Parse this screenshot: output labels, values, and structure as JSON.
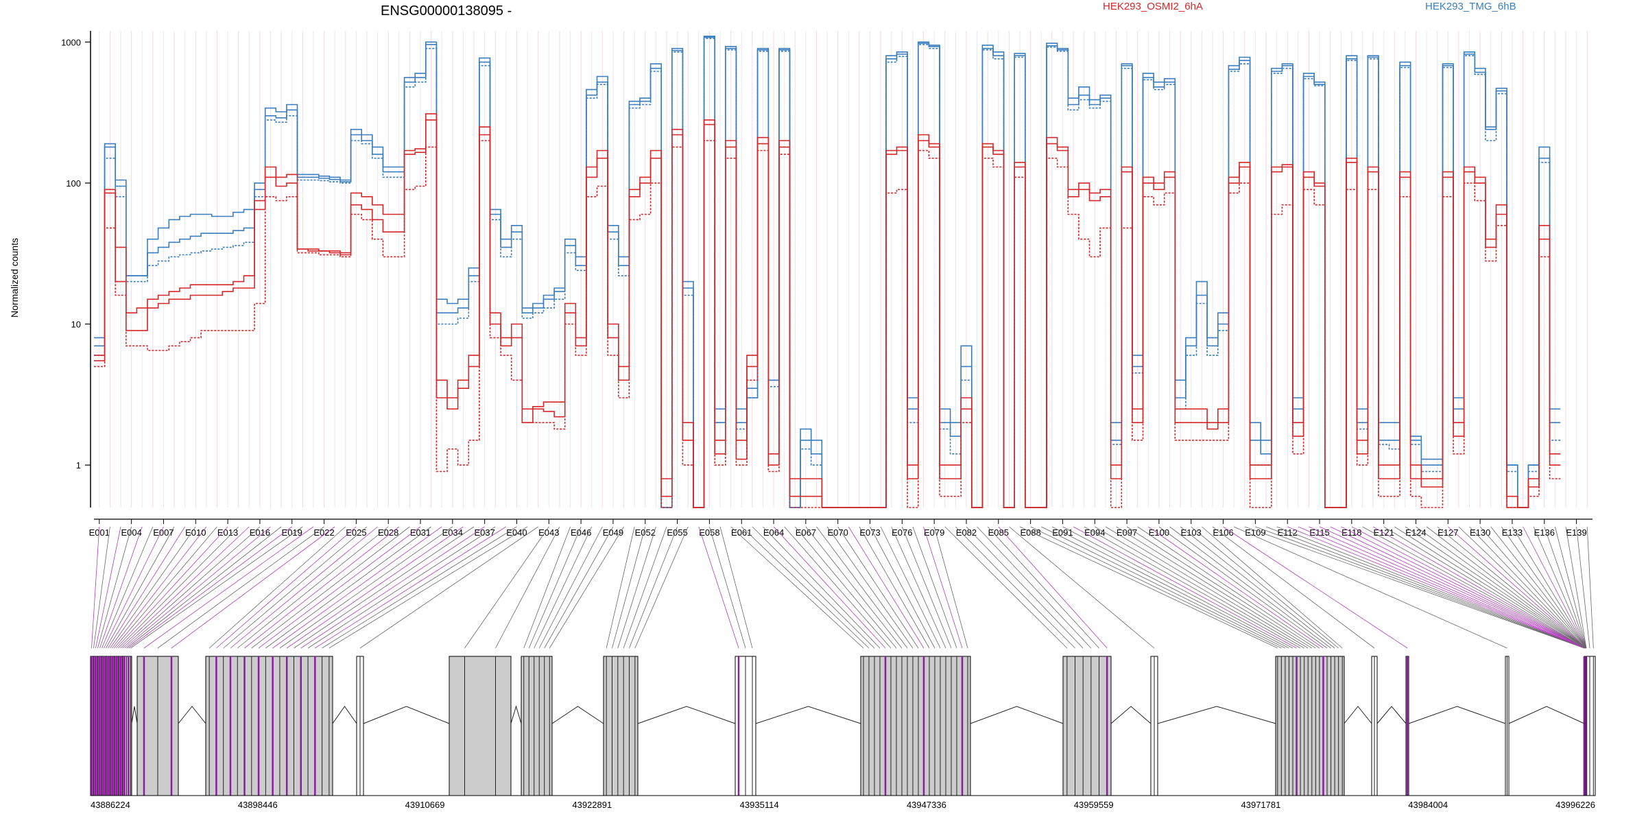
{
  "chart_data": {
    "type": "line",
    "title": "ENSG00000138095 -",
    "xlabel": "",
    "ylabel": "Normalized counts",
    "y_scale": "log",
    "ylim": [
      0.5,
      1200
    ],
    "y_ticks": [
      "1",
      "10",
      "100",
      "1000"
    ],
    "legend": [
      "HEK293_OSMI2_6hA",
      "HEK293_TMG_6hB"
    ],
    "legend_placement": "top",
    "colors": {
      "OSMI2": "#d62728",
      "TMG": "#3a7ebf",
      "highlight": "#e81de8",
      "exon_fill": "#cccccc"
    },
    "exon_ticks": [
      "E001",
      "E004",
      "E007",
      "E010",
      "E013",
      "E016",
      "E019",
      "E022",
      "E025",
      "E028",
      "E031",
      "E034",
      "E037",
      "E040",
      "E043",
      "E046",
      "E049",
      "E052",
      "E055",
      "E058",
      "E061",
      "E064",
      "E067",
      "E070",
      "E073",
      "E076",
      "E079",
      "E082",
      "E085",
      "E088",
      "E091",
      "E094",
      "E097",
      "E100",
      "E103",
      "E106",
      "E109",
      "E112",
      "E115",
      "E118",
      "E121",
      "E124",
      "E127",
      "E130",
      "E133",
      "E136",
      "E139"
    ],
    "exon_count": 140,
    "genomic_coordinate_ticks": [
      "43886224",
      "43898446",
      "43910669",
      "43922891",
      "43935114",
      "43947336",
      "43959559",
      "43971781",
      "43984004",
      "43996226"
    ],
    "series": [
      {
        "name": "HEK293_TMG_6hB",
        "group": "TMG",
        "values": [
          8,
          190,
          105,
          22,
          22,
          40,
          48,
          55,
          58,
          60,
          60,
          58,
          58,
          62,
          65,
          100,
          340,
          320,
          360,
          115,
          115,
          112,
          110,
          105,
          240,
          220,
          180,
          130,
          130,
          560,
          600,
          1000,
          15,
          14,
          15,
          25,
          770,
          65,
          40,
          50,
          12,
          13,
          16,
          18,
          40,
          30,
          460,
          570,
          50,
          30,
          380,
          400,
          700,
          0.5,
          900,
          20,
          0.5,
          1100,
          2,
          930,
          2,
          3,
          900,
          4,
          900,
          0.5,
          1.5,
          1.2,
          0.5,
          0.5,
          0.5,
          0.5,
          0.5,
          0.5,
          800,
          850,
          3,
          1000,
          950,
          2,
          2,
          7,
          0.5,
          950,
          850,
          0.5,
          830,
          0.5,
          0.5,
          980,
          900,
          400,
          480,
          390,
          420,
          1.5,
          700,
          6,
          600,
          520,
          550,
          3,
          8,
          20,
          7,
          12,
          680,
          780,
          2,
          1.5,
          650,
          700,
          3,
          600,
          520,
          0.5,
          0.5,
          800,
          2,
          800,
          1.5,
          1.5,
          720,
          1.5,
          1,
          1,
          700,
          3,
          850,
          650,
          240,
          470,
          1,
          0.5,
          1,
          180,
          2
        ]
      },
      {
        "name": "HEK293_TMG_6hB",
        "group": "TMG",
        "values": [
          7,
          180,
          95,
          22,
          22,
          32,
          35,
          38,
          40,
          42,
          44,
          44,
          44,
          46,
          48,
          90,
          300,
          290,
          330,
          110,
          110,
          108,
          106,
          102,
          220,
          200,
          160,
          120,
          120,
          520,
          560,
          960,
          12,
          12,
          13,
          22,
          720,
          60,
          35,
          45,
          13,
          14,
          15,
          17,
          36,
          26,
          420,
          520,
          45,
          26,
          360,
          380,
          650,
          0.5,
          870,
          18,
          0.5,
          1080,
          2.5,
          900,
          2.5,
          3.5,
          880,
          4,
          880,
          0.5,
          1.8,
          1.5,
          0.5,
          0.5,
          0.5,
          0.5,
          0.5,
          0.5,
          760,
          820,
          2.5,
          980,
          930,
          2.5,
          1.6,
          5,
          0.5,
          900,
          800,
          0.5,
          800,
          0.5,
          0.5,
          940,
          880,
          360,
          420,
          360,
          400,
          2,
          680,
          5,
          560,
          480,
          520,
          4,
          7,
          16,
          8,
          10,
          640,
          740,
          1.5,
          1.2,
          620,
          680,
          2.5,
          570,
          500,
          0.5,
          0.5,
          760,
          2.5,
          780,
          2,
          2,
          680,
          1.6,
          1.1,
          1.1,
          680,
          2.5,
          820,
          610,
          250,
          450,
          1,
          0.5,
          1,
          150,
          2.5
        ]
      },
      {
        "name": "HEK293_TMG_6hB",
        "group": "TMG",
        "values": [
          6,
          150,
          80,
          20,
          20,
          26,
          28,
          30,
          31,
          32,
          33,
          34,
          35,
          36,
          38,
          80,
          280,
          270,
          300,
          105,
          105,
          104,
          102,
          100,
          200,
          190,
          150,
          110,
          110,
          480,
          520,
          900,
          10,
          10,
          11,
          20,
          680,
          55,
          30,
          40,
          11,
          12,
          13,
          15,
          32,
          24,
          400,
          500,
          40,
          22,
          340,
          360,
          620,
          0.5,
          850,
          16,
          0.5,
          1060,
          2,
          880,
          1.8,
          3,
          860,
          3.6,
          860,
          0.5,
          1.3,
          1,
          0.5,
          0.5,
          0.5,
          0.5,
          0.5,
          0.5,
          720,
          790,
          2,
          960,
          900,
          1.8,
          1.2,
          4,
          0.5,
          880,
          760,
          0.5,
          780,
          0.5,
          0.5,
          920,
          860,
          330,
          390,
          340,
          380,
          1.4,
          650,
          4.5,
          540,
          460,
          500,
          2.5,
          6,
          14,
          6,
          9,
          620,
          700,
          1,
          1,
          600,
          650,
          2,
          550,
          490,
          0.5,
          0.5,
          740,
          1.8,
          760,
          1.4,
          1.3,
          660,
          1.4,
          0.9,
          0.9,
          660,
          2,
          800,
          590,
          200,
          430,
          0.9,
          0.5,
          0.9,
          140,
          1.5
        ]
      },
      {
        "name": "HEK293_OSMI2_6hA",
        "group": "OSMI2",
        "values": [
          6,
          90,
          35,
          12,
          13,
          15,
          16,
          17,
          18,
          19,
          19,
          19,
          19,
          20,
          22,
          75,
          130,
          110,
          115,
          34,
          34,
          33,
          33,
          32,
          85,
          80,
          70,
          60,
          60,
          170,
          175,
          310,
          4,
          3,
          4,
          6,
          250,
          12,
          8,
          10,
          2,
          2.5,
          2.4,
          2.2,
          14,
          8,
          130,
          170,
          10,
          5,
          90,
          110,
          170,
          0.8,
          240,
          2,
          0.5,
          280,
          1.5,
          200,
          1.5,
          6,
          210,
          1.2,
          200,
          0.8,
          0.8,
          0.8,
          0.5,
          0.5,
          0.5,
          0.5,
          0.5,
          0.5,
          170,
          180,
          1,
          220,
          190,
          1,
          1,
          3,
          0.5,
          190,
          170,
          0.5,
          140,
          0.5,
          0.5,
          210,
          180,
          90,
          100,
          85,
          90,
          1,
          130,
          2.5,
          110,
          100,
          120,
          2.5,
          2.5,
          2.5,
          2,
          2.5,
          110,
          140,
          1,
          1,
          130,
          135,
          2,
          120,
          100,
          0.5,
          0.5,
          150,
          1.5,
          130,
          1,
          1,
          120,
          1,
          0.8,
          0.8,
          120,
          2,
          130,
          110,
          40,
          70,
          0.6,
          0.5,
          0.8,
          50,
          1.2
        ]
      },
      {
        "name": "HEK293_OSMI2_6hA",
        "group": "OSMI2",
        "values": [
          5.5,
          85,
          20,
          9,
          9,
          13,
          14,
          15,
          15,
          16,
          16,
          16,
          17,
          18,
          18,
          65,
          110,
          95,
          100,
          34,
          33,
          33,
          32,
          31,
          70,
          65,
          55,
          45,
          45,
          160,
          165,
          280,
          3,
          2.5,
          3.5,
          5,
          220,
          10,
          7,
          8,
          2.5,
          2.6,
          2.8,
          2.8,
          12,
          7,
          110,
          150,
          8,
          4,
          80,
          100,
          150,
          0.6,
          220,
          1.5,
          0.5,
          260,
          1.2,
          180,
          1.1,
          5,
          190,
          1,
          180,
          0.6,
          0.6,
          0.6,
          0.5,
          0.5,
          0.5,
          0.5,
          0.5,
          0.5,
          160,
          170,
          0.8,
          200,
          180,
          0.8,
          0.8,
          2.5,
          0.5,
          180,
          160,
          0.5,
          130,
          0.5,
          0.5,
          190,
          170,
          80,
          90,
          75,
          80,
          0.8,
          120,
          2,
          100,
          90,
          110,
          2,
          2,
          2,
          1.8,
          2,
          100,
          130,
          0.8,
          0.8,
          120,
          130,
          1.6,
          110,
          95,
          0.5,
          0.5,
          140,
          1.2,
          120,
          0.8,
          0.8,
          110,
          0.8,
          0.7,
          0.7,
          110,
          1.6,
          120,
          100,
          35,
          60,
          0.5,
          0.5,
          0.7,
          40,
          1
        ]
      },
      {
        "name": "HEK293_OSMI2_6hA",
        "group": "OSMI2",
        "values": [
          5,
          48,
          16,
          7,
          7,
          6.5,
          6.5,
          7,
          7.5,
          8,
          9,
          9,
          9,
          9,
          9,
          14,
          80,
          75,
          80,
          32,
          32,
          31,
          31,
          30,
          60,
          55,
          40,
          30,
          30,
          90,
          95,
          180,
          0.9,
          1.3,
          1,
          1.5,
          200,
          8,
          6,
          4,
          2,
          2,
          2,
          1.8,
          10,
          6,
          80,
          95,
          6,
          3,
          55,
          60,
          100,
          0.5,
          180,
          1,
          0.5,
          200,
          1,
          150,
          1,
          4,
          170,
          0.9,
          160,
          0.5,
          0.5,
          0.5,
          0.5,
          0.5,
          0.5,
          0.5,
          0.5,
          0.5,
          85,
          90,
          0.5,
          170,
          150,
          0.6,
          0.6,
          2,
          0.5,
          150,
          130,
          0.5,
          110,
          0.5,
          0.5,
          150,
          130,
          60,
          40,
          30,
          48,
          0.5,
          48,
          1.5,
          80,
          70,
          85,
          1.5,
          1.5,
          1.5,
          1.5,
          1.5,
          85,
          100,
          0.5,
          0.5,
          60,
          70,
          1.2,
          90,
          70,
          0.5,
          0.5,
          90,
          1,
          90,
          0.6,
          0.6,
          80,
          0.6,
          0.5,
          0.5,
          80,
          1.2,
          100,
          75,
          28,
          50,
          0.5,
          0.5,
          0.6,
          30,
          0.8
        ]
      }
    ]
  }
}
